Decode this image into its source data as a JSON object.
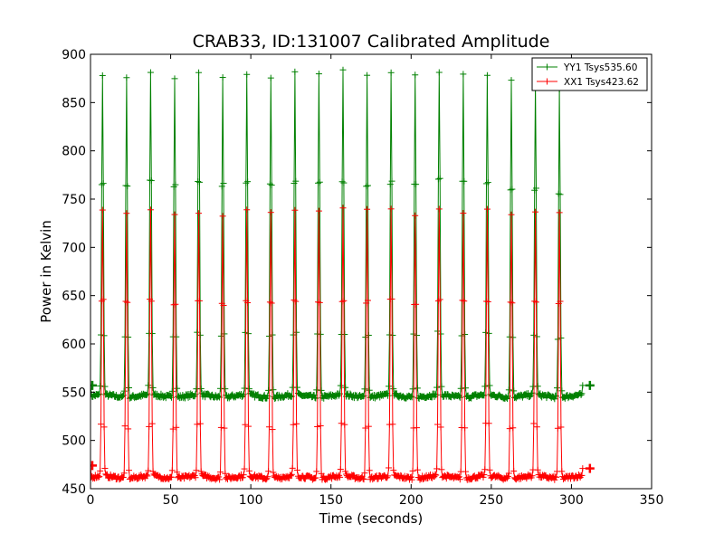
{
  "chart_data": {
    "type": "line",
    "title": "CRAB33, ID:131007 Calibrated Amplitude",
    "xlabel": "Time (seconds)",
    "ylabel": "Power in Kelvin",
    "xlim": [
      0,
      350
    ],
    "ylim": [
      450,
      900
    ],
    "xticks": [
      0,
      50,
      100,
      150,
      200,
      250,
      300,
      350
    ],
    "yticks": [
      450,
      500,
      550,
      600,
      650,
      700,
      750,
      800,
      850,
      900
    ],
    "grid": false,
    "legend_position": "top-right",
    "x_start": 0,
    "x_end": 307,
    "pulse_times": [
      7.5,
      22.5,
      37.5,
      52.5,
      67.5,
      82.5,
      97.5,
      112.5,
      127.5,
      142.5,
      157.5,
      172.5,
      187.5,
      202.5,
      217.5,
      232.5,
      247.5,
      262.5,
      277.5,
      292.5
    ],
    "series": [
      {
        "name": "YY1 Tsys535.60",
        "color": "#008000",
        "marker": "+",
        "baseline": 546,
        "pulse_peaks": [
          876,
          877,
          881,
          878,
          879,
          878,
          879,
          877,
          879,
          880,
          881,
          879,
          878,
          878,
          882,
          882,
          878,
          873,
          868,
          863
        ],
        "start_value": 557,
        "end_value": 557
      },
      {
        "name": "XX1 Tsys423.62",
        "color": "#ff0000",
        "marker": "+",
        "baseline": 462,
        "pulse_peaks": [
          737,
          736,
          738,
          735,
          736,
          735,
          736,
          736,
          736,
          738,
          738,
          739,
          737,
          736,
          737,
          738,
          737,
          736,
          736,
          736
        ],
        "start_value": 474,
        "end_value": 471
      }
    ]
  }
}
